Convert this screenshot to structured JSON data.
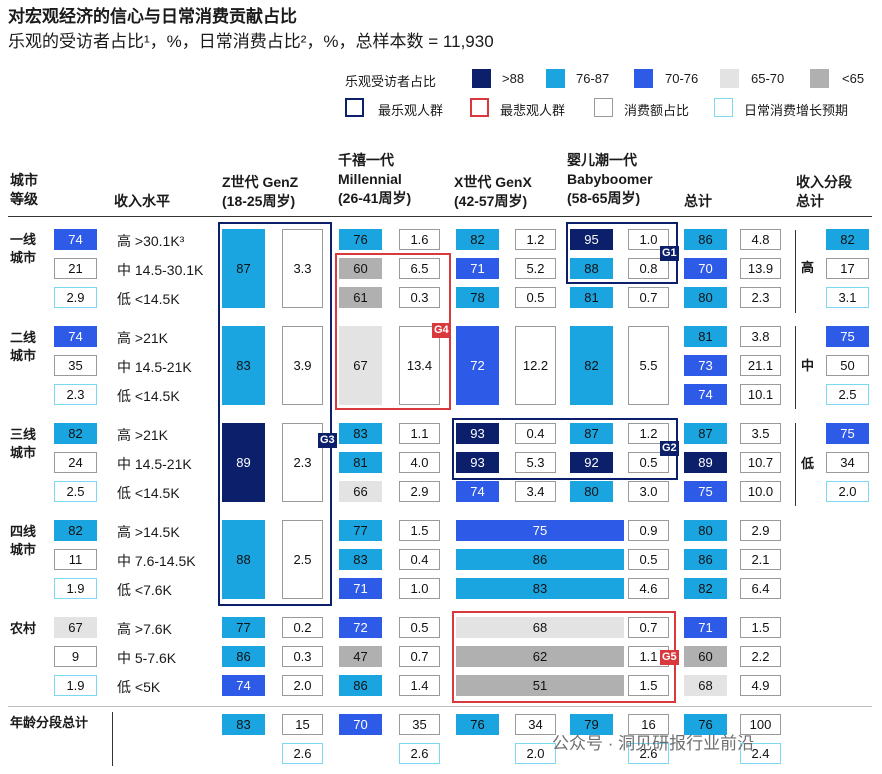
{
  "title": "对宏观经济的信心与日常消费贡献占比",
  "subtitle": "乐观的受访者占比¹，%，日常消费占比²，%，总样本数 = 11,930",
  "legend": {
    "optimist_title": "乐观受访者占比",
    "bins": [
      {
        "label": ">88",
        "color": "#0b1f6b"
      },
      {
        "label": "76-87",
        "color": "#1ba5e0"
      },
      {
        "label": "70-76",
        "color": "#2e5ae8"
      },
      {
        "label": "65-70",
        "color": "#e3e3e3"
      },
      {
        "label": "<65",
        "color": "#b0b0b0"
      }
    ],
    "boxes": [
      {
        "label": "最乐观人群",
        "color": "#0b1f6b"
      },
      {
        "label": "最悲观人群",
        "color": "#d9383d"
      },
      {
        "label": "消费额占比",
        "color": "#9a9a9a"
      },
      {
        "label": "日常消费增长预期",
        "color": "#7ad8f0"
      }
    ]
  },
  "headers": {
    "city_tier": "城市等级",
    "income": "收入水平",
    "genz": [
      "Z世代 GenZ",
      "(18-25周岁)"
    ],
    "millennial": [
      "千禧一代",
      "Millennial",
      "(26-41周岁)"
    ],
    "genx": [
      "X世代 GenX",
      "(42-57周岁)"
    ],
    "boomer": [
      "婴儿潮一代",
      "Babyboomer",
      "(58-65周岁)"
    ],
    "total": "总计",
    "income_total": [
      "收入分段",
      "总计"
    ],
    "age_total": "年龄分段总计"
  },
  "watermark": "公众号 · 洞见研报行业前沿",
  "chart_data": {
    "type": "table",
    "title": "对宏观经济的信心与日常消费贡献占比",
    "color_bins": [
      ">88",
      "76-87",
      "70-76",
      "65-70",
      "<65"
    ],
    "tiers": [
      {
        "name": "一线城市",
        "name_lines": [
          "一线",
          "城市"
        ],
        "summary": [
          "74",
          "21",
          "2.9"
        ],
        "incomes": [
          "高 >30.1K³",
          "中 14.5-30.1K",
          "低 <14.5K"
        ],
        "genz": [
          "87",
          "3.3"
        ],
        "millennial": [
          [
            "76",
            "1.6"
          ],
          [
            "60",
            "6.5"
          ],
          [
            "61",
            "0.3"
          ]
        ],
        "genx": [
          [
            "82",
            "1.2"
          ],
          [
            "71",
            "5.2"
          ],
          [
            "78",
            "0.5"
          ]
        ],
        "boomer": [
          [
            "95",
            "1.0"
          ],
          [
            "88",
            "0.8"
          ],
          [
            "81",
            "0.7"
          ]
        ],
        "total": [
          [
            "86",
            "4.8"
          ],
          [
            "70",
            "13.9"
          ],
          [
            "80",
            "2.3"
          ]
        ]
      },
      {
        "name": "二线城市",
        "name_lines": [
          "二线",
          "城市"
        ],
        "summary": [
          "74",
          "35",
          "2.3"
        ],
        "incomes": [
          "高 >21K",
          "中 14.5-21K",
          "低 <14.5K"
        ],
        "genz": [
          "83",
          "3.9"
        ],
        "millennial_merged": [
          "67",
          "13.4"
        ],
        "genx_merged": [
          "72",
          "12.2"
        ],
        "boomer_merged": [
          "82",
          "5.5"
        ],
        "total": [
          [
            "81",
            "3.8"
          ],
          [
            "73",
            "21.1"
          ],
          [
            "74",
            "10.1"
          ]
        ]
      },
      {
        "name": "三线城市",
        "name_lines": [
          "三线",
          "城市"
        ],
        "summary": [
          "82",
          "24",
          "2.5"
        ],
        "incomes": [
          "高 >21K",
          "中 14.5-21K",
          "低 <14.5K"
        ],
        "genz": [
          "89",
          "2.3"
        ],
        "millennial": [
          [
            "83",
            "1.1"
          ],
          [
            "81",
            "4.0"
          ],
          [
            "66",
            "2.9"
          ]
        ],
        "genx": [
          [
            "93",
            "0.4"
          ],
          [
            "93",
            "5.3"
          ],
          [
            "74",
            "3.4"
          ]
        ],
        "boomer": [
          [
            "87",
            "1.2"
          ],
          [
            "92",
            "0.5"
          ],
          [
            "80",
            "3.0"
          ]
        ],
        "total": [
          [
            "87",
            "3.5"
          ],
          [
            "89",
            "10.7"
          ],
          [
            "75",
            "10.0"
          ]
        ]
      },
      {
        "name": "四线城市",
        "name_lines": [
          "四线",
          "城市"
        ],
        "summary": [
          "82",
          "11",
          "1.9"
        ],
        "incomes": [
          "高 >14.5K",
          "中 7.6-14.5K",
          "低 <7.6K"
        ],
        "genz": [
          "88",
          "2.5"
        ],
        "millennial": [
          [
            "77",
            "1.5"
          ],
          [
            "83",
            "0.4"
          ],
          [
            "71",
            "1.0"
          ]
        ],
        "genx_boomer": [
          [
            "75",
            "0.9"
          ],
          [
            "86",
            "0.5"
          ],
          [
            "83",
            "4.6"
          ]
        ],
        "total": [
          [
            "80",
            "2.9"
          ],
          [
            "86",
            "2.1"
          ],
          [
            "82",
            "6.4"
          ]
        ]
      },
      {
        "name": "农村",
        "name_lines": [
          "农村"
        ],
        "summary": [
          "67",
          "9",
          "1.9"
        ],
        "incomes": [
          "高 >7.6K",
          "中 5-7.6K",
          "低 <5K"
        ],
        "genz": [
          [
            "77",
            "0.2"
          ],
          [
            "86",
            "0.3"
          ],
          [
            "74",
            "2.0"
          ]
        ],
        "millennial": [
          [
            "72",
            "0.5"
          ],
          [
            "47",
            "0.7"
          ],
          [
            "86",
            "1.4"
          ]
        ],
        "genx_boomer": [
          [
            "68",
            "0.7"
          ],
          [
            "62",
            "1.1"
          ],
          [
            "51",
            "1.5"
          ]
        ],
        "total": [
          [
            "71",
            "1.5"
          ],
          [
            "60",
            "2.2"
          ],
          [
            "68",
            "4.9"
          ]
        ]
      }
    ],
    "income_totals": [
      {
        "label": "高",
        "values": [
          "82",
          "17",
          "3.1"
        ]
      },
      {
        "label": "中",
        "values": [
          "75",
          "50",
          "2.5"
        ]
      },
      {
        "label": "低",
        "values": [
          "75",
          "34",
          "2.0"
        ]
      }
    ],
    "age_totals": [
      {
        "group": "Z世代 GenZ",
        "values": [
          "83",
          "15",
          "2.6"
        ]
      },
      {
        "group": "千禧一代 Millennial",
        "values": [
          "70",
          "35",
          "2.6"
        ]
      },
      {
        "group": "X世代 GenX",
        "values": [
          "76",
          "34",
          "2.0"
        ]
      },
      {
        "group": "婴儿潮一代 Babyboomer",
        "values": [
          "79",
          "16",
          "2.6"
        ]
      },
      {
        "group": "总计",
        "values": [
          "76",
          "100",
          "2.4"
        ]
      }
    ],
    "highlight_groups": {
      "most_optimistic": [
        "G1",
        "G2",
        "G3"
      ],
      "most_pessimistic": [
        "G4",
        "G5"
      ]
    }
  }
}
